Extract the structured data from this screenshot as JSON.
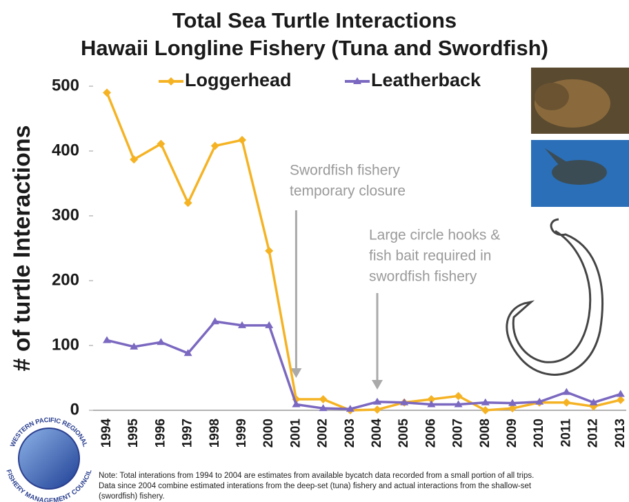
{
  "chart_data": {
    "type": "line",
    "title": [
      "Total Sea Turtle Interactions",
      "Hawaii Longline Fishery (Tuna and Swordfish)"
    ],
    "y_label": "# of turtle Interactions",
    "categories": [
      "1994",
      "1995",
      "1996",
      "1997",
      "1998",
      "1999",
      "2000",
      "2001",
      "2002",
      "2003",
      "2004",
      "2005",
      "2006",
      "2007",
      "2008",
      "2009",
      "2010",
      "2011",
      "2012",
      "2013"
    ],
    "series": [
      {
        "name": "Loggerhead",
        "color": "#f5b324",
        "marker": "diamond",
        "values": [
          490,
          387,
          411,
          320,
          408,
          417,
          246,
          17,
          17,
          0,
          1,
          12,
          17,
          22,
          0,
          3,
          12,
          12,
          6,
          16
        ]
      },
      {
        "name": "Leatherback",
        "color": "#7b68c0",
        "marker": "triangle",
        "values": [
          108,
          98,
          105,
          88,
          137,
          131,
          131,
          9,
          3,
          2,
          13,
          12,
          9,
          9,
          12,
          11,
          13,
          28,
          12,
          25
        ]
      }
    ],
    "ylim": [
      0,
      500
    ],
    "yticks": [
      0,
      100,
      200,
      300,
      400,
      500
    ],
    "grid": false,
    "legend_position": "top",
    "annotations": [
      {
        "lines": [
          "Swordfish fishery",
          "temporary closure"
        ]
      },
      {
        "lines": [
          "Large circle hooks &",
          "fish bait required in",
          "swordfish fishery"
        ]
      }
    ],
    "note": [
      "Note: Total interations from 1994 to 2004 are estimates from available bycatch data recorded from a small portion of all trips.",
      "Data since 2004 combine estimated interations from the deep-set (tuna) fishery and actual interactions from the shallow-set",
      "(swordfish) fishery."
    ],
    "logo": [
      "WESTERN PACIFIC REGIONAL",
      "FISHERY MANAGEMENT COUNCIL"
    ]
  }
}
